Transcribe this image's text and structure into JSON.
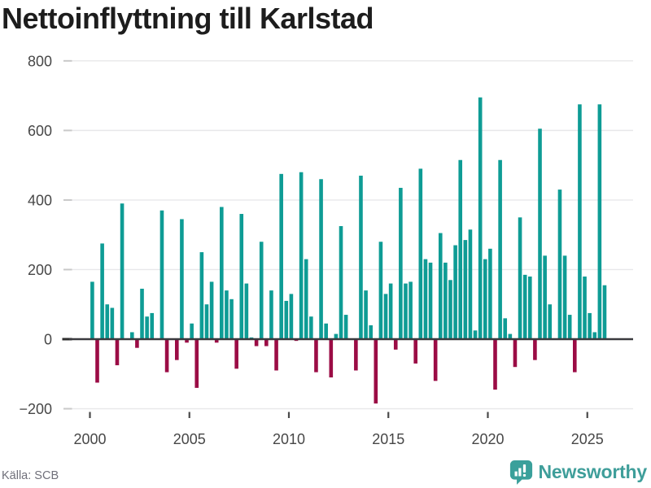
{
  "header": {
    "title": "Nettoinflyttning till Karlstad"
  },
  "footer": {
    "source": "Källa: SCB",
    "brand": "Newsworthy",
    "brand_icon": "newsworthy-speech-bubble-chart-icon"
  },
  "colors": {
    "positive_bar": "#0e9c95",
    "negative_bar": "#9b0c45",
    "zero_axis": "#3a3a3e",
    "gridline": "#e8e8ea",
    "y_tick": "#c9c9c9",
    "x_tick": "#4a4a4a",
    "axis_label": "#474747",
    "title": "#1d1d1d",
    "source_text": "#70707a",
    "brand_teal": "#3f9e9a"
  },
  "chart_data": {
    "type": "bar",
    "title": "Nettoinflyttning till Karlstad",
    "xlabel": "",
    "ylabel": "",
    "frequency": "quarterly",
    "start_year": 2000,
    "end_year": 2025,
    "grid": true,
    "legend": "none",
    "ylim": [
      -260,
      840
    ],
    "y_ticks": [
      800,
      600,
      400,
      200,
      0,
      -200
    ],
    "y_tick_labels": [
      "800",
      "600",
      "400",
      "200",
      "0",
      "−200"
    ],
    "x_tick_years": [
      2000,
      2005,
      2010,
      2015,
      2020,
      2025
    ],
    "x_tick_labels": [
      "2000",
      "2005",
      "2010",
      "2015",
      "2020",
      "2025"
    ],
    "values": [
      165,
      -125,
      275,
      100,
      90,
      -75,
      390,
      0,
      20,
      -25,
      145,
      65,
      75,
      0,
      370,
      -95,
      0,
      -60,
      345,
      -10,
      45,
      -140,
      250,
      100,
      165,
      -10,
      380,
      140,
      115,
      -85,
      360,
      160,
      5,
      -20,
      280,
      -20,
      140,
      -90,
      475,
      110,
      130,
      -5,
      480,
      230,
      65,
      -95,
      460,
      45,
      -110,
      15,
      325,
      70,
      0,
      -90,
      470,
      140,
      40,
      -185,
      280,
      130,
      160,
      -30,
      435,
      160,
      165,
      -70,
      490,
      230,
      220,
      -120,
      305,
      220,
      170,
      270,
      515,
      285,
      315,
      25,
      695,
      230,
      260,
      -145,
      515,
      60,
      15,
      -80,
      350,
      185,
      180,
      -60,
      605,
      240,
      100,
      0,
      430,
      240,
      70,
      -95,
      675,
      180,
      75,
      20,
      675,
      155
    ]
  }
}
